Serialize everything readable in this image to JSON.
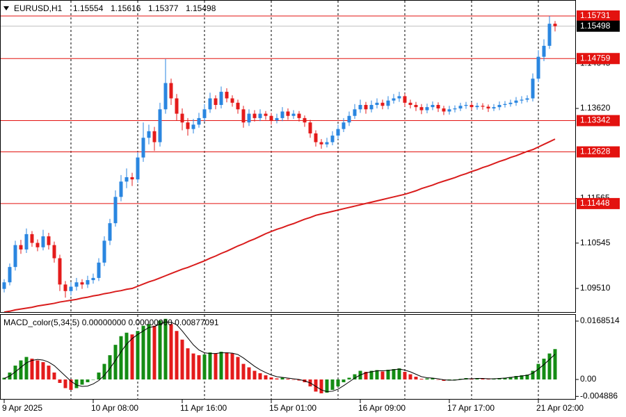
{
  "chart_data": [
    {
      "type": "candlestick",
      "symbol": "EURUSD,H1",
      "x": [
        "9 Apr 2025",
        null,
        null,
        null,
        null,
        null,
        null,
        null,
        null,
        null,
        null,
        null,
        null,
        null,
        null,
        null,
        "10 Apr 08:00",
        null,
        null,
        null,
        null,
        null,
        null,
        null,
        null,
        null,
        null,
        null,
        null,
        null,
        null,
        null,
        "11 Apr 16:00",
        null,
        null,
        null,
        null,
        null,
        null,
        null,
        null,
        null,
        null,
        null,
        null,
        null,
        null,
        null,
        "15 Apr 01:00",
        null,
        null,
        null,
        null,
        null,
        null,
        null,
        null,
        null,
        null,
        null,
        null,
        null,
        null,
        null,
        "16 Apr 09:00",
        null,
        null,
        null,
        null,
        null,
        null,
        null,
        null,
        null,
        null,
        null,
        null,
        null,
        null,
        null,
        "17 Apr 17:00",
        null,
        null,
        null,
        null,
        null,
        null,
        null,
        null,
        null,
        null,
        null,
        null,
        null,
        null,
        null,
        "21 Apr 02:00",
        null,
        null,
        null
      ],
      "ohlc": [
        [
          1.095,
          1.0972,
          1.0942,
          1.0965
        ],
        [
          1.0965,
          1.1008,
          1.0958,
          1.1
        ],
        [
          1.1,
          1.106,
          1.0992,
          1.105
        ],
        [
          1.105,
          1.1062,
          1.103,
          1.104
        ],
        [
          1.104,
          1.1088,
          1.1032,
          1.1075
        ],
        [
          1.1075,
          1.1082,
          1.1046,
          1.1055
        ],
        [
          1.1055,
          1.1063,
          1.1036,
          1.1045
        ],
        [
          1.1045,
          1.1085,
          1.1038,
          1.107
        ],
        [
          1.107,
          1.1078,
          1.104,
          1.105
        ],
        [
          1.105,
          1.1058,
          1.101,
          1.102
        ],
        [
          1.102,
          1.1028,
          1.0945,
          1.096
        ],
        [
          1.096,
          1.0968,
          1.093,
          1.0945
        ],
        [
          1.0945,
          1.0965,
          1.0935,
          1.0955
        ],
        [
          1.0955,
          1.0975,
          1.0946,
          1.0965
        ],
        [
          1.0965,
          1.0972,
          1.095,
          1.096
        ],
        [
          1.096,
          1.098,
          1.0952,
          1.097
        ],
        [
          1.097,
          1.0985,
          1.0962,
          1.0975
        ],
        [
          1.0975,
          1.102,
          1.0968,
          1.101
        ],
        [
          1.101,
          1.107,
          1.1002,
          1.106
        ],
        [
          1.106,
          1.111,
          1.105,
          1.11
        ],
        [
          1.11,
          1.1175,
          1.1092,
          1.116
        ],
        [
          1.116,
          1.121,
          1.115,
          1.1195
        ],
        [
          1.1195,
          1.1225,
          1.118,
          1.1205
        ],
        [
          1.1205,
          1.1215,
          1.1185,
          1.12
        ],
        [
          1.12,
          1.1262,
          1.1192,
          1.125
        ],
        [
          1.125,
          1.133,
          1.124,
          1.1295
        ],
        [
          1.1295,
          1.1325,
          1.128,
          1.131
        ],
        [
          1.131,
          1.132,
          1.1265,
          1.1285
        ],
        [
          1.1285,
          1.1375,
          1.1275,
          1.136
        ],
        [
          1.136,
          1.1475,
          1.135,
          1.142
        ],
        [
          1.142,
          1.143,
          1.137,
          1.1385
        ],
        [
          1.1385,
          1.1395,
          1.1335,
          1.135
        ],
        [
          1.135,
          1.1362,
          1.1312,
          1.133
        ],
        [
          1.133,
          1.134,
          1.13,
          1.1315
        ],
        [
          1.1315,
          1.1338,
          1.1305,
          1.1325
        ],
        [
          1.1325,
          1.1352,
          1.1318,
          1.134
        ],
        [
          1.134,
          1.1372,
          1.1332,
          1.136
        ],
        [
          1.136,
          1.1398,
          1.1352,
          1.1385
        ],
        [
          1.1385,
          1.1392,
          1.136,
          1.137
        ],
        [
          1.137,
          1.1412,
          1.1362,
          1.14
        ],
        [
          1.14,
          1.1408,
          1.1376,
          1.1385
        ],
        [
          1.1385,
          1.1392,
          1.1366,
          1.1375
        ],
        [
          1.1375,
          1.1382,
          1.135,
          1.136
        ],
        [
          1.136,
          1.1368,
          1.1318,
          1.133
        ],
        [
          1.133,
          1.136,
          1.1322,
          1.135
        ],
        [
          1.135,
          1.1358,
          1.1332,
          1.134
        ],
        [
          1.134,
          1.136,
          1.1333,
          1.135
        ],
        [
          1.135,
          1.1356,
          1.1336,
          1.1345
        ],
        [
          1.1345,
          1.1352,
          1.1325,
          1.1335
        ],
        [
          1.1335,
          1.135,
          1.1328,
          1.134
        ],
        [
          1.134,
          1.1365,
          1.1333,
          1.1355
        ],
        [
          1.1355,
          1.1362,
          1.1336,
          1.1345
        ],
        [
          1.1345,
          1.1358,
          1.1338,
          1.135
        ],
        [
          1.135,
          1.1356,
          1.1332,
          1.134
        ],
        [
          1.134,
          1.1346,
          1.132,
          1.133
        ],
        [
          1.133,
          1.1336,
          1.1295,
          1.1305
        ],
        [
          1.1305,
          1.1312,
          1.1275,
          1.1285
        ],
        [
          1.1285,
          1.1292,
          1.127,
          1.128
        ],
        [
          1.128,
          1.1295,
          1.1273,
          1.1285
        ],
        [
          1.1285,
          1.131,
          1.1278,
          1.13
        ],
        [
          1.13,
          1.1325,
          1.1292,
          1.1315
        ],
        [
          1.1315,
          1.134,
          1.1308,
          1.133
        ],
        [
          1.133,
          1.1355,
          1.1322,
          1.1345
        ],
        [
          1.1345,
          1.1372,
          1.1338,
          1.136
        ],
        [
          1.136,
          1.1382,
          1.1352,
          1.137
        ],
        [
          1.137,
          1.1377,
          1.135,
          1.136
        ],
        [
          1.136,
          1.138,
          1.1353,
          1.137
        ],
        [
          1.137,
          1.1385,
          1.1362,
          1.1375
        ],
        [
          1.1375,
          1.1382,
          1.136,
          1.1368
        ],
        [
          1.1368,
          1.139,
          1.136,
          1.138
        ],
        [
          1.138,
          1.1395,
          1.1373,
          1.1385
        ],
        [
          1.1385,
          1.14,
          1.1377,
          1.139
        ],
        [
          1.139,
          1.1396,
          1.1366,
          1.1375
        ],
        [
          1.1375,
          1.1382,
          1.1362,
          1.137
        ],
        [
          1.137,
          1.1377,
          1.1356,
          1.1365
        ],
        [
          1.1365,
          1.1372,
          1.1349,
          1.1358
        ],
        [
          1.1358,
          1.1373,
          1.1351,
          1.1365
        ],
        [
          1.1365,
          1.1378,
          1.1358,
          1.137
        ],
        [
          1.137,
          1.1376,
          1.1354,
          1.1362
        ],
        [
          1.1362,
          1.1368,
          1.1347,
          1.1355
        ],
        [
          1.1355,
          1.1368,
          1.1348,
          1.136
        ],
        [
          1.136,
          1.1369,
          1.1353,
          1.1362
        ],
        [
          1.1362,
          1.1375,
          1.1356,
          1.1368
        ],
        [
          1.1368,
          1.1377,
          1.1361,
          1.137
        ],
        [
          1.137,
          1.1376,
          1.1358,
          1.1365
        ],
        [
          1.1365,
          1.1375,
          1.1359,
          1.1368
        ],
        [
          1.1368,
          1.1374,
          1.1359,
          1.1366
        ],
        [
          1.1366,
          1.1371,
          1.1354,
          1.1362
        ],
        [
          1.1362,
          1.1372,
          1.1356,
          1.1365
        ],
        [
          1.1365,
          1.1378,
          1.1358,
          1.137
        ],
        [
          1.137,
          1.1379,
          1.1364,
          1.1372
        ],
        [
          1.1372,
          1.1382,
          1.1366,
          1.1375
        ],
        [
          1.1375,
          1.1388,
          1.1368,
          1.138
        ],
        [
          1.138,
          1.139,
          1.1373,
          1.1382
        ],
        [
          1.1382,
          1.1392,
          1.1376,
          1.1385
        ],
        [
          1.1385,
          1.1442,
          1.1378,
          1.143
        ],
        [
          1.143,
          1.1495,
          1.1422,
          1.148
        ],
        [
          1.148,
          1.152,
          1.147,
          1.1505
        ],
        [
          1.1505,
          1.1573,
          1.1498,
          1.15554
        ],
        [
          1.15554,
          1.15616,
          1.15377,
          1.15498
        ]
      ],
      "up_color": "#2a86e0",
      "down_color": "#e41b1b",
      "ylim": [
        1.08955,
        1.16096
      ],
      "yticks": [
        {
          "value": 1.0951,
          "label": "1.09510"
        },
        1.10545,
        1.11565,
        {
          "value": 1.1362,
          "label": "1.13620"
        },
        1.14645
      ],
      "grid": true,
      "ma": {
        "color": "#d91c1c",
        "values": [
          1.0897,
          1.0899,
          1.0902,
          1.0904,
          1.0906,
          1.0908,
          1.0911,
          1.0913,
          1.0915,
          1.0917,
          1.092,
          1.0922,
          1.0924,
          1.0926,
          1.0929,
          1.0931,
          1.0934,
          1.0936,
          1.0939,
          1.0941,
          1.0944,
          1.0946,
          1.0949,
          1.0951,
          1.0956,
          1.0961,
          1.0966,
          1.097,
          1.0975,
          1.098,
          1.0985,
          1.099,
          1.0995,
          1.0999,
          1.1004,
          1.1009,
          1.1014,
          1.102,
          1.1025,
          1.1031,
          1.1036,
          1.1042,
          1.1048,
          1.1053,
          1.1059,
          1.1064,
          1.107,
          1.1076,
          1.1081,
          1.1086,
          1.109,
          1.1095,
          1.1099,
          1.1104,
          1.1109,
          1.1113,
          1.1118,
          1.1121,
          1.1124,
          1.1127,
          1.113,
          1.1133,
          1.1136,
          1.1139,
          1.1142,
          1.1145,
          1.1148,
          1.1151,
          1.1154,
          1.1157,
          1.116,
          1.1163,
          1.1166,
          1.117,
          1.1174,
          1.1179,
          1.1183,
          1.1187,
          1.1192,
          1.1196,
          1.12,
          1.1204,
          1.1209,
          1.1213,
          1.1218,
          1.1222,
          1.1227,
          1.1231,
          1.1236,
          1.1241,
          1.1245,
          1.125,
          1.1254,
          1.1259,
          1.1264,
          1.1268,
          1.1274,
          1.128,
          1.1286,
          1.1292
        ]
      },
      "levels": {
        "color": "#e3120f",
        "values": [
          1.15731,
          1.14759,
          1.13342,
          1.12628,
          1.11448
        ]
      }
    },
    {
      "type": "histogram",
      "label": "MACD_color(5,34,5) 0.00000000 0.00000000 0.00877091",
      "ylim": [
        -0.00582,
        0.01886
      ],
      "yticks": [
        0.0168514,
        {
          "value": 0,
          "label": "0.00"
        },
        -0.004886
      ],
      "up_color": "#148c14",
      "down_color": "#e41b1b",
      "values": [
        0.0005,
        0.002,
        0.004,
        0.0055,
        0.0065,
        0.006,
        0.0055,
        0.005,
        0.004,
        0.002,
        -0.001,
        -0.0025,
        -0.003,
        -0.0025,
        -0.0015,
        -0.0008,
        0,
        0.002,
        0.0045,
        0.007,
        0.01,
        0.0125,
        0.0135,
        0.013,
        0.014,
        0.0155,
        0.016,
        0.0155,
        0.017,
        0.0175,
        0.016,
        0.014,
        0.0115,
        0.009,
        0.0075,
        0.007,
        0.0072,
        0.0078,
        0.0075,
        0.008,
        0.0078,
        0.0075,
        0.0065,
        0.0045,
        0.0035,
        0.0025,
        0.0018,
        0.0012,
        0.0006,
        0.0003,
        0.0005,
        0.0002,
        0,
        -0.0003,
        -0.0008,
        -0.002,
        -0.0035,
        -0.004,
        -0.0038,
        -0.003,
        -0.002,
        -0.0008,
        0.0005,
        0.0015,
        0.0025,
        0.0022,
        0.0025,
        0.0027,
        0.0023,
        0.0028,
        0.003,
        0.0032,
        0.0022,
        0.0015,
        0.0008,
        0.0002,
        0.0003,
        0.0004,
        -0.0001,
        -0.0004,
        -0.0003,
        -0.0001,
        0.0002,
        0.0004,
        0.0002,
        0.0004,
        0.0003,
        0.0001,
        0.0002,
        0.0004,
        0.0005,
        0.0007,
        0.001,
        0.0012,
        0.0014,
        0.0025,
        0.0045,
        0.006,
        0.0075,
        0.00877091
      ],
      "signal": {
        "color": "#000000",
        "values": [
          0.0003,
          0.001,
          0.0022,
          0.0035,
          0.0048,
          0.0055,
          0.0058,
          0.0056,
          0.005,
          0.004,
          0.0025,
          0.001,
          -0.0005,
          -0.0016,
          -0.002,
          -0.0019,
          -0.0013,
          -0.0003,
          0.0012,
          0.0032,
          0.0055,
          0.008,
          0.0102,
          0.0118,
          0.013,
          0.014,
          0.015,
          0.0153,
          0.016,
          0.0166,
          0.0165,
          0.0158,
          0.014,
          0.012,
          0.01,
          0.0085,
          0.0077,
          0.0075,
          0.0075,
          0.0077,
          0.0077,
          0.0076,
          0.0072,
          0.0062,
          0.005,
          0.0038,
          0.0028,
          0.002,
          0.0013,
          0.0008,
          0.0006,
          0.0004,
          0.0002,
          0,
          -0.0004,
          -0.001,
          -0.002,
          -0.003,
          -0.0035,
          -0.0034,
          -0.0028,
          -0.0018,
          -0.0007,
          0.0004,
          0.0013,
          0.0019,
          0.0022,
          0.0025,
          0.0025,
          0.0026,
          0.0028,
          0.003,
          0.0027,
          0.0022,
          0.0015,
          0.0008,
          0.0005,
          0.0004,
          0.0002,
          -0.0001,
          -0.0002,
          -0.0002,
          0,
          0.0002,
          0.0002,
          0.0003,
          0.0003,
          0.0002,
          0.0002,
          0.0003,
          0.0004,
          0.0006,
          0.0008,
          0.001,
          0.0012,
          0.0018,
          0.003,
          0.0043,
          0.0058,
          0.0073
        ]
      }
    }
  ]
}
